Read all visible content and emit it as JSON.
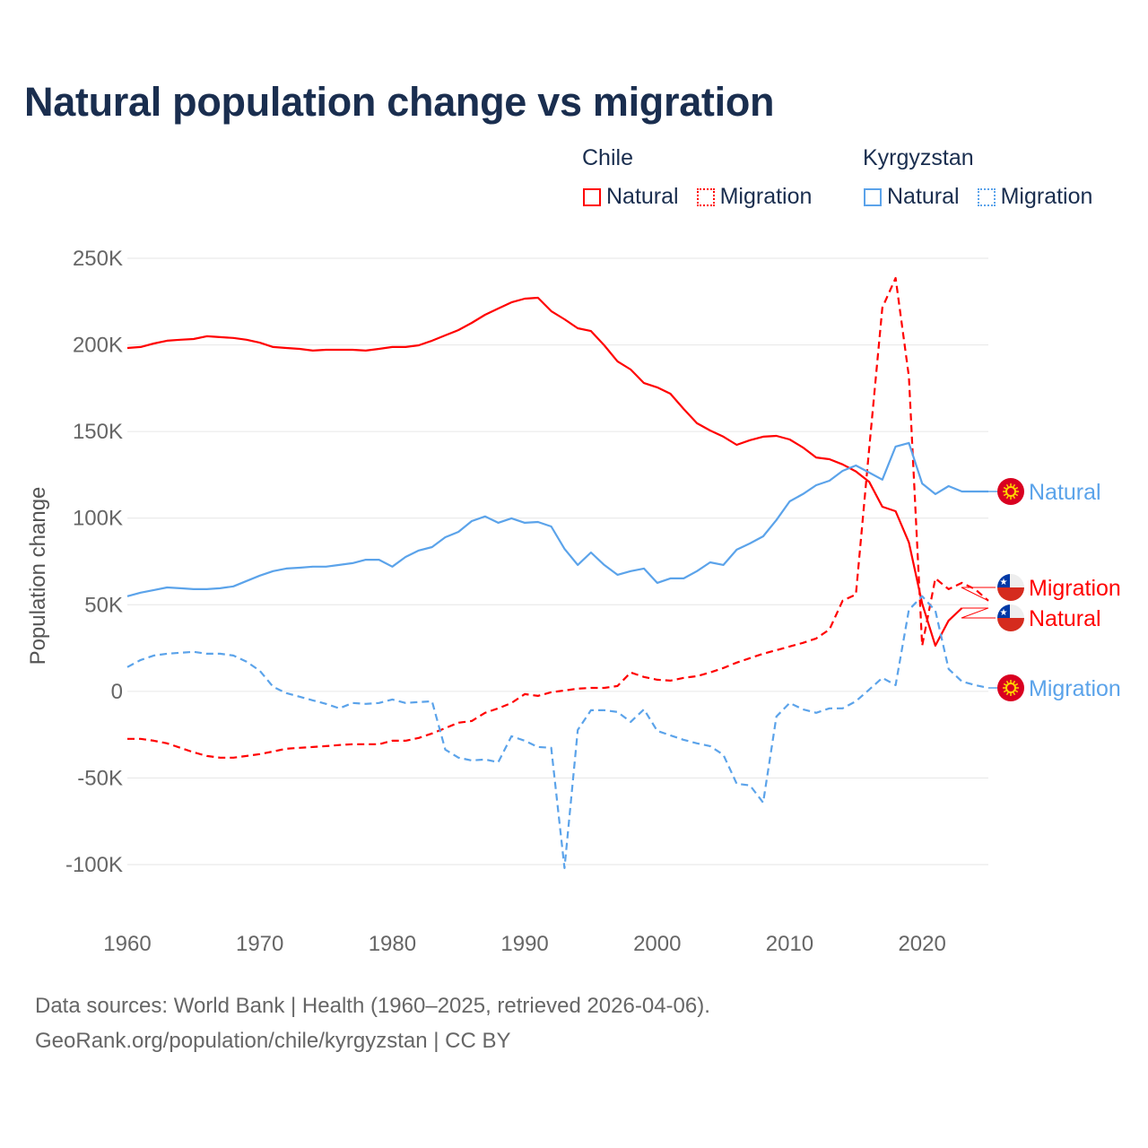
{
  "title": "Natural population change vs migration",
  "legend": {
    "groups": [
      {
        "name": "Chile",
        "items": [
          {
            "label": "Natural",
            "color": "#ff0000",
            "style": "solid"
          },
          {
            "label": "Migration",
            "color": "#ff0000",
            "style": "dotted"
          }
        ]
      },
      {
        "name": "Kyrgyzstan",
        "items": [
          {
            "label": "Natural",
            "color": "#5ba3ea",
            "style": "solid"
          },
          {
            "label": "Migration",
            "color": "#5ba3ea",
            "style": "dotted"
          }
        ]
      }
    ]
  },
  "footer": {
    "line1": "Data sources: World Bank | Health (1960–2025, retrieved 2026-04-06).",
    "line2": "GeoRank.org/population/chile/kyrgyzstan | CC BY"
  },
  "chart_data": {
    "type": "line",
    "title": "Natural population change vs migration",
    "xlabel": "",
    "ylabel": "Population change",
    "xlim": [
      1960,
      2025
    ],
    "ylim": [
      -100000,
      250000
    ],
    "x_ticks": [
      "1960",
      "1970",
      "1980",
      "1990",
      "2000",
      "2010",
      "2020"
    ],
    "x_tick_values": [
      1960,
      1970,
      1980,
      1990,
      2000,
      2010,
      2020
    ],
    "y_ticks": [
      "250K",
      "200K",
      "150K",
      "100K",
      "50K",
      "0",
      "-50K",
      "-100K"
    ],
    "y_tick_values": [
      250000,
      200000,
      150000,
      100000,
      50000,
      0,
      -50000,
      -100000
    ],
    "grid": true,
    "legend_position": "top-right",
    "series": [
      {
        "name": "Chile Natural",
        "end_label": "Natural",
        "color": "#ff0000",
        "dash": false,
        "start_year": 1960,
        "values_k": [
          198.2,
          198.8,
          200.8,
          202.4,
          203,
          203.4,
          205,
          204.5,
          204,
          203,
          201.3,
          198.8,
          198.2,
          197.7,
          196.7,
          197.2,
          197.2,
          197.2,
          196.7,
          197.7,
          198.8,
          198.8,
          199.8,
          202.4,
          205.5,
          208.6,
          212.7,
          217.4,
          221,
          224.6,
          226.7,
          227.2,
          219.5,
          214.8,
          209.6,
          208,
          199.8,
          190.5,
          185.8,
          178,
          175.5,
          171.8,
          163,
          154.8,
          150.6,
          147,
          142.3,
          145,
          147,
          147.5,
          145.4,
          140.8,
          135,
          134,
          131,
          127,
          121,
          106.6,
          104,
          86,
          50.7,
          26.4,
          40.9,
          48.1
        ]
      },
      {
        "name": "Chile Migration",
        "end_label": "Migration",
        "color": "#ff0000",
        "dash": true,
        "start_year": 1960,
        "values_k": [
          -27.4,
          -27.4,
          -28.5,
          -30,
          -32.6,
          -35.2,
          -37.3,
          -38.3,
          -38.3,
          -37.3,
          -36.2,
          -34.7,
          -33.1,
          -32.6,
          -32.1,
          -31.6,
          -31,
          -30.5,
          -30.5,
          -30.5,
          -28.5,
          -28.5,
          -26.9,
          -24.3,
          -21.2,
          -18.1,
          -17.1,
          -12.4,
          -9.8,
          -6.7,
          -1.6,
          -2.6,
          -0.5,
          0.5,
          1.6,
          2,
          2,
          3.1,
          10.9,
          8.3,
          6.7,
          6.2,
          7.8,
          8.8,
          10.9,
          13.5,
          16.6,
          19.2,
          21.7,
          23.8,
          25.9,
          28,
          30.5,
          35.7,
          52.3,
          55.9,
          140,
          221.5,
          238.6,
          181.7,
          26.4,
          65.2,
          59,
          62.6,
          59,
          52.3
        ]
      },
      {
        "name": "Kyrgyzstan Natural",
        "end_label": "Natural",
        "color": "#5ba3ea",
        "dash": false,
        "start_year": 1960,
        "values_k": [
          54.9,
          57,
          58.5,
          60,
          59.5,
          59,
          59,
          59.5,
          60.6,
          63.7,
          66.8,
          69.4,
          70.9,
          71.4,
          72,
          72,
          73,
          74,
          76,
          76,
          72,
          77.6,
          81.3,
          83.3,
          89,
          92.1,
          98.3,
          101,
          97.3,
          99.9,
          97.3,
          97.8,
          95.2,
          82.3,
          73,
          80.2,
          73,
          67.3,
          69.4,
          70.9,
          62.6,
          65.2,
          65.2,
          69.4,
          74.5,
          73,
          81.8,
          85.4,
          89.5,
          98.9,
          109.7,
          113.9,
          119,
          121.6,
          127.3,
          130.4,
          126.3,
          122.2,
          141.3,
          143.4,
          120,
          113.9,
          118.5,
          115.4,
          115.4,
          115.4
        ]
      },
      {
        "name": "Kyrgyzstan Migration",
        "end_label": "Migration",
        "color": "#5ba3ea",
        "dash": true,
        "start_year": 1960,
        "values_k": [
          14,
          18.1,
          20.7,
          21.7,
          22.3,
          22.8,
          21.7,
          21.7,
          20.7,
          17.1,
          11.9,
          2.6,
          -1,
          -3.1,
          -5.2,
          -7.2,
          -9.8,
          -6.7,
          -7.2,
          -6.7,
          -4.7,
          -6.7,
          -6.2,
          -5.7,
          -33.6,
          -38.3,
          -39.9,
          -39.3,
          -40.9,
          -25.9,
          -28.5,
          -32.1,
          -32.6,
          -102,
          -22.3,
          -10.9,
          -10.9,
          -11.9,
          -17.6,
          -10.4,
          -22.8,
          -25.4,
          -28,
          -30,
          -31.6,
          -36.7,
          -53.3,
          -54.3,
          -64.2,
          -14.5,
          -6.7,
          -10.4,
          -12.4,
          -9.8,
          -9.8,
          -5.7,
          1,
          7.8,
          3.6,
          47.1,
          54.9,
          46.6,
          12.9,
          5.7,
          3.6,
          2
        ]
      }
    ]
  }
}
